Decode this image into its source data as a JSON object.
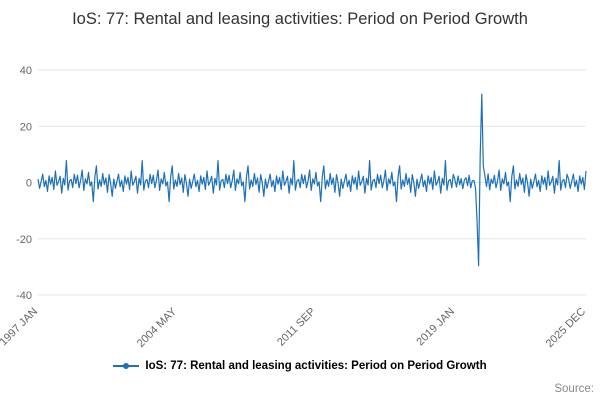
{
  "title": "IoS: 77: Rental and leasing activities: Period on Period Growth",
  "legend": {
    "label": "IoS: 77: Rental and leasing activities: Period on Period Growth"
  },
  "source_label": "Source:",
  "colors": {
    "line": "#1d70b8",
    "grid": "#e6e6e6",
    "tick_text": "#666666",
    "title_text": "#333333"
  },
  "chart_data": {
    "type": "line",
    "title": "IoS: 77: Rental and leasing activities: Period on Period Growth",
    "xlabel": "",
    "ylabel": "",
    "ylim": [
      -40,
      40
    ],
    "y_ticks": [
      40,
      20,
      0,
      -20,
      -40
    ],
    "grid": "horizontal",
    "legend_position": "bottom",
    "frequency": "monthly",
    "x_start": "1997 JAN",
    "x_end": "2025 DEC",
    "x_ticks": [
      {
        "label": "1997 JAN",
        "index": 0
      },
      {
        "label": "2004 MAY",
        "index": 88
      },
      {
        "label": "2011 SEP",
        "index": 176
      },
      {
        "label": "2019 JAN",
        "index": 264
      },
      {
        "label": "2025 DEC",
        "index": 347
      }
    ],
    "series": [
      {
        "name": "IoS: 77: Rental and leasing activities: Period on Period Growth",
        "values": [
          1.2,
          -2.1,
          0.5,
          3.0,
          -1.5,
          0.8,
          -3.2,
          2.4,
          -0.6,
          1.8,
          -2.5,
          4.1,
          -1.0,
          0.3,
          2.2,
          -3.8,
          1.5,
          -0.9,
          7.8,
          -2.7,
          0.6,
          1.1,
          -1.8,
          2.9,
          -0.4,
          2.6,
          -1.9,
          0.7,
          4.4,
          -2.8,
          1.3,
          -0.5,
          3.6,
          -1.2,
          0.2,
          -6.8,
          2.1,
          5.9,
          -2.3,
          0.9,
          -1.4,
          3.2,
          -0.7,
          1.6,
          -3.5,
          2.8,
          -0.2,
          -4.9,
          1.2,
          -2.1,
          0.5,
          3.0,
          -1.5,
          0.8,
          -3.2,
          2.4,
          -0.6,
          1.8,
          -2.5,
          4.1,
          -1.0,
          0.3,
          2.2,
          -3.8,
          1.5,
          -0.9,
          7.8,
          -2.7,
          0.6,
          1.1,
          -1.8,
          2.9,
          -0.4,
          2.6,
          -1.9,
          0.7,
          4.4,
          -2.8,
          1.3,
          -0.5,
          3.6,
          -1.2,
          0.2,
          -6.8,
          2.1,
          5.9,
          -2.3,
          0.9,
          -1.4,
          3.2,
          -0.7,
          1.6,
          -3.5,
          2.8,
          -0.2,
          -4.9,
          1.2,
          -2.1,
          0.5,
          3.0,
          -1.5,
          0.8,
          -3.2,
          2.4,
          -0.6,
          1.8,
          -2.5,
          4.1,
          -1.0,
          0.3,
          2.2,
          -3.8,
          1.5,
          -0.9,
          7.8,
          -2.7,
          0.6,
          1.1,
          -1.8,
          2.9,
          -0.4,
          2.6,
          -1.9,
          0.7,
          4.4,
          -2.8,
          1.3,
          -0.5,
          3.6,
          -1.2,
          0.2,
          -6.8,
          2.1,
          5.9,
          -2.3,
          0.9,
          -1.4,
          3.2,
          -0.7,
          1.6,
          -3.5,
          2.8,
          -0.2,
          -4.9,
          1.2,
          -2.1,
          0.5,
          3.0,
          -1.5,
          0.8,
          -3.2,
          2.4,
          -0.6,
          1.8,
          -2.5,
          4.1,
          -1.0,
          0.3,
          2.2,
          -3.8,
          1.5,
          -0.9,
          7.8,
          -2.7,
          0.6,
          1.1,
          -1.8,
          2.9,
          -0.4,
          2.6,
          -1.9,
          0.7,
          4.4,
          -2.8,
          1.3,
          -0.5,
          3.6,
          -1.2,
          0.2,
          -6.8,
          2.1,
          5.9,
          -2.3,
          0.9,
          -1.4,
          3.2,
          -0.7,
          1.6,
          -3.5,
          2.8,
          -0.2,
          -4.9,
          1.2,
          -2.1,
          0.5,
          3.0,
          -1.5,
          0.8,
          -3.2,
          2.4,
          -0.6,
          1.8,
          -2.5,
          4.1,
          -1.0,
          0.3,
          2.2,
          -3.8,
          1.5,
          -0.9,
          7.8,
          -2.7,
          0.6,
          1.1,
          -1.8,
          2.9,
          -0.4,
          2.6,
          -1.9,
          0.7,
          4.4,
          -2.8,
          1.3,
          -0.5,
          3.6,
          -1.2,
          0.2,
          -6.8,
          2.1,
          5.9,
          -2.3,
          0.9,
          -1.4,
          3.2,
          -0.7,
          1.6,
          -3.5,
          2.8,
          -0.2,
          -4.9,
          1.2,
          -2.1,
          0.5,
          3.0,
          -1.5,
          0.8,
          -3.2,
          2.4,
          -0.6,
          1.8,
          -2.5,
          4.1,
          -1.0,
          0.3,
          2.2,
          -3.8,
          1.5,
          -0.9,
          7.8,
          -2.7,
          0.6,
          1.1,
          -1.8,
          2.9,
          1.0,
          -1.6,
          2.3,
          -0.8,
          1.4,
          -2.2,
          0.9,
          1.7,
          -1.1,
          2.6,
          -1.9,
          0.6,
          0.7,
          -1.8,
          -13.2,
          -29.6,
          9.5,
          31.4,
          5.8,
          2.4,
          -1.5,
          3.1,
          -2.6,
          1.2,
          -0.4,
          2.6,
          -1.9,
          0.7,
          4.4,
          -2.8,
          1.3,
          -0.5,
          3.6,
          -1.2,
          0.2,
          -6.8,
          2.1,
          5.9,
          -2.3,
          0.9,
          -1.4,
          3.2,
          -0.7,
          1.6,
          -3.5,
          2.8,
          -0.2,
          -4.9,
          1.2,
          -2.1,
          0.5,
          3.0,
          -1.5,
          0.8,
          -3.2,
          2.4,
          -0.6,
          1.8,
          -2.5,
          4.1,
          -1.0,
          0.3,
          2.2,
          -3.8,
          1.5,
          -0.9,
          7.8,
          -2.7,
          0.6,
          1.1,
          -1.8,
          2.9,
          1.2,
          -2.1,
          0.5,
          3.0,
          -1.5,
          0.8,
          -3.2,
          2.4,
          -0.6,
          1.8,
          -2.5,
          4.1
        ]
      }
    ]
  }
}
